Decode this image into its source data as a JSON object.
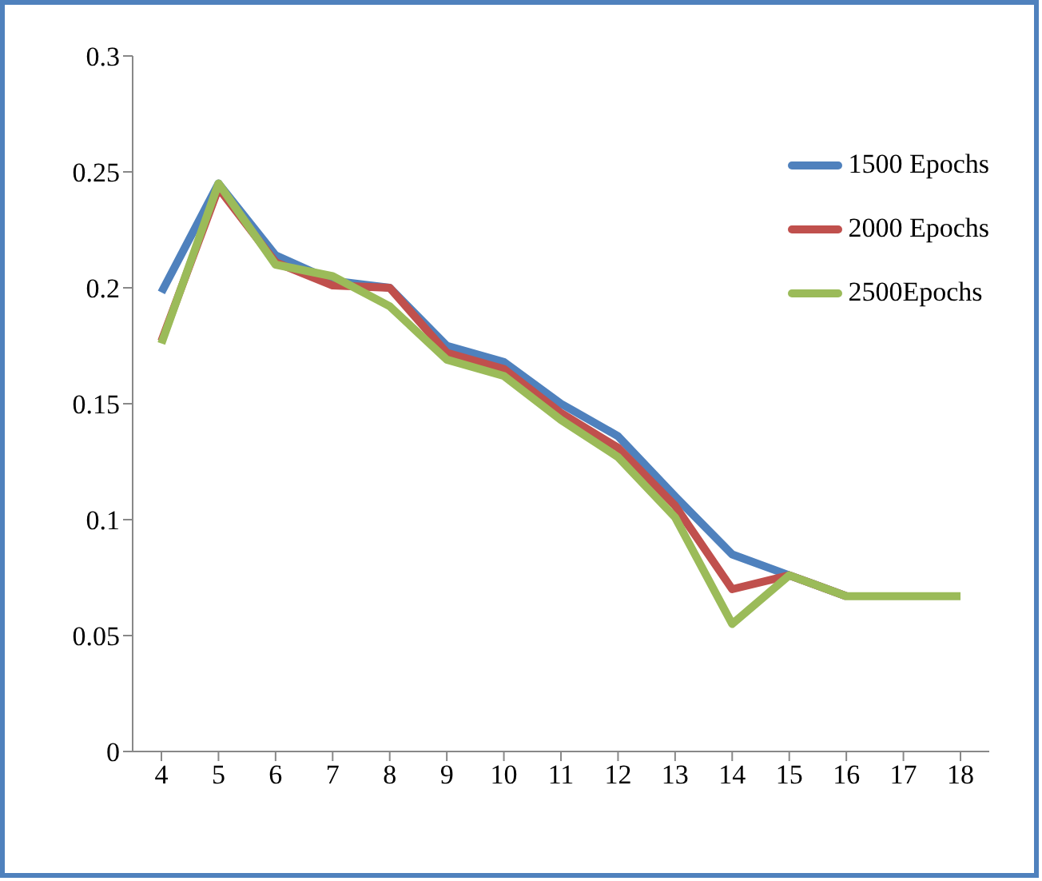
{
  "chart_data": {
    "type": "line",
    "categories": [
      "4",
      "5",
      "6",
      "7",
      "8",
      "9",
      "10",
      "11",
      "12",
      "13",
      "14",
      "15",
      "16",
      "17",
      "18"
    ],
    "series": [
      {
        "name": "1500 Epochs",
        "color": "#4f81bd",
        "values": [
          0.198,
          0.245,
          0.214,
          0.203,
          0.2,
          0.175,
          0.168,
          0.15,
          0.136,
          0.11,
          0.085,
          0.076,
          0.067,
          null,
          null
        ]
      },
      {
        "name": "2000 Epochs",
        "color": "#c0504d",
        "values": [
          0.177,
          0.243,
          0.211,
          0.201,
          0.2,
          0.172,
          0.165,
          0.146,
          0.131,
          0.106,
          0.07,
          0.076,
          0.067,
          null,
          null
        ]
      },
      {
        "name": "2500Epochs",
        "color": "#9bbb59",
        "values": [
          0.176,
          0.245,
          0.21,
          0.205,
          0.192,
          0.169,
          0.162,
          0.143,
          0.127,
          0.101,
          0.055,
          0.076,
          0.067,
          0.067,
          0.067
        ]
      }
    ],
    "ylim": [
      0,
      0.3
    ],
    "yticks": [
      0,
      0.05,
      0.1,
      0.15,
      0.2,
      0.25,
      0.3
    ],
    "grid": false,
    "legend": "right",
    "marker": "none",
    "line_style": "solid"
  }
}
